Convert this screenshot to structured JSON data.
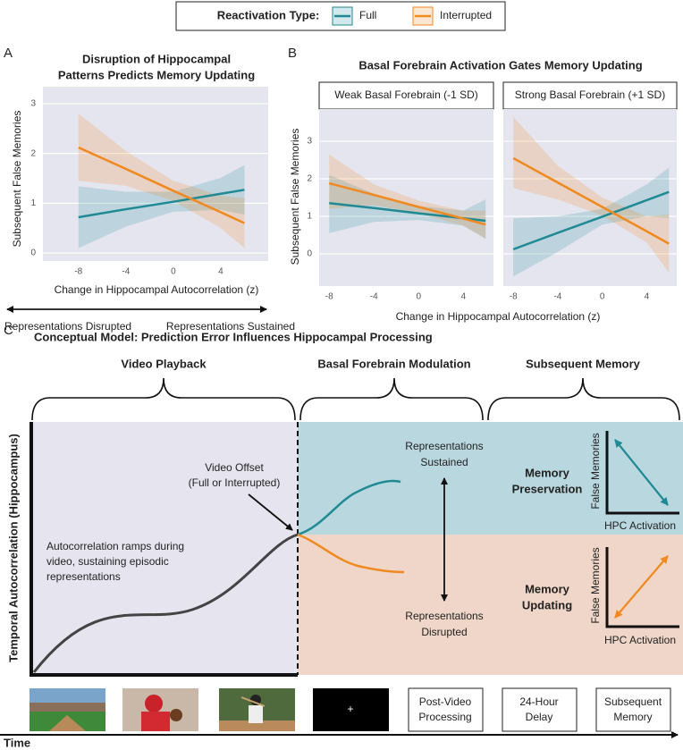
{
  "legend": {
    "title": "Reactivation Type:"
  },
  "chart_data": [
    {
      "type": "line",
      "panel_label": "A",
      "title": [
        "Disruption of Hippocampal",
        "Patterns Predicts Memory Updating"
      ],
      "xlabel": "Change in Hippocampal Autocorrelation (z)",
      "ylabel": "Subsequent False Memories",
      "xlim": [
        -11,
        8
      ],
      "ylim": [
        -0.16,
        3.34
      ],
      "xticks": [
        -8,
        -4,
        0,
        4
      ],
      "yticks": [
        0,
        1,
        2,
        3
      ],
      "grid": true,
      "x": [
        -8,
        -4,
        0,
        4,
        6
      ],
      "series": [
        {
          "name": "Full",
          "color": "#1f8a94",
          "values": [
            0.72,
            0.88,
            1.03,
            1.19,
            1.27
          ],
          "ci_lower": [
            0.1,
            0.53,
            0.83,
            0.87,
            0.77
          ],
          "ci_upper": [
            1.34,
            1.23,
            1.23,
            1.51,
            1.77
          ]
        },
        {
          "name": "Interrupted",
          "color": "#f0891f",
          "values": [
            2.12,
            1.69,
            1.25,
            0.82,
            0.6
          ],
          "ci_lower": [
            1.45,
            1.35,
            1.05,
            0.5,
            0.1
          ],
          "ci_upper": [
            2.8,
            2.05,
            1.45,
            1.15,
            1.1
          ]
        }
      ],
      "annotations": [
        "Representations Disrupted",
        "Representations Sustained"
      ]
    },
    {
      "type": "line",
      "panel_label": "B",
      "title": "Basal Forebrain Activation Gates Memory Updating",
      "xlabel": "Change in Hippocampal Autocorrelation (z)",
      "ylabel": "Subsequent False Memories",
      "xlim": [
        -8.9,
        6.7
      ],
      "ylim": [
        -0.86,
        3.86
      ],
      "xticks": [
        -8,
        -4,
        0,
        4
      ],
      "yticks": [
        0,
        1,
        2,
        3
      ],
      "grid": true,
      "x": [
        -8,
        -4,
        0,
        4,
        6
      ],
      "panels": [
        {
          "title": "Weak Basal Forebrain (-1 SD)",
          "series": [
            {
              "color": "#1f8a94",
              "values": [
                1.35,
                1.22,
                1.08,
                0.95,
                0.88
              ],
              "ci_lower": [
                0.55,
                0.85,
                0.9,
                0.75,
                0.4
              ],
              "ci_upper": [
                2.1,
                1.6,
                1.28,
                1.15,
                1.45
              ]
            },
            {
              "color": "#f0891f",
              "values": [
                1.88,
                1.57,
                1.25,
                0.94,
                0.78
              ],
              "ci_lower": [
                1.2,
                1.3,
                1.08,
                0.75,
                0.4
              ],
              "ci_upper": [
                2.65,
                1.85,
                1.42,
                1.15,
                1.15
              ]
            }
          ]
        },
        {
          "title": "Strong Basal Forebrain (+1 SD)",
          "series": [
            {
              "color": "#1f8a94",
              "values": [
                0.12,
                0.56,
                0.99,
                1.43,
                1.65
              ],
              "ci_lower": [
                -0.6,
                0.05,
                0.78,
                1.0,
                0.95
              ],
              "ci_upper": [
                0.95,
                1.0,
                1.2,
                1.85,
                2.3
              ]
            },
            {
              "color": "#f0891f",
              "values": [
                2.55,
                1.9,
                1.25,
                0.6,
                0.27
              ],
              "ci_lower": [
                1.75,
                1.45,
                1.02,
                0.3,
                -0.5
              ],
              "ci_upper": [
                3.65,
                2.35,
                1.5,
                1.0,
                1.05
              ]
            }
          ]
        }
      ]
    }
  ],
  "diagram": {
    "panel_label": "C",
    "title": "Conceptual Model: Prediction Error Influences Hippocampal Processing",
    "sections": [
      "Video Playback",
      "Basal Forebrain Modulation",
      "Subsequent Memory"
    ],
    "y_axis": "Temporal Autocorrelation (Hippocampus)",
    "offset_note": [
      "Video Offset",
      "(Full or Interrupted)"
    ],
    "ramp_note": [
      "Autocorrelation ramps during",
      "video, sustaining episodic",
      "representations"
    ],
    "sustained": [
      "Representations",
      "Sustained"
    ],
    "disrupted": [
      "Representations",
      "Disrupted"
    ],
    "preservation": [
      "Memory",
      "Preservation"
    ],
    "updating": [
      "Memory",
      "Updating"
    ],
    "mini_plots": [
      {
        "y": "False Memories",
        "x": "HPC Activation"
      },
      {
        "y": "False Memories",
        "x": "HPC Activation"
      }
    ],
    "fixation": "+",
    "boxes": [
      [
        "Post-Video",
        "Processing"
      ],
      [
        "24-Hour",
        "Delay"
      ],
      [
        "Subsequent",
        "Memory"
      ]
    ],
    "x_axis": "Time"
  }
}
